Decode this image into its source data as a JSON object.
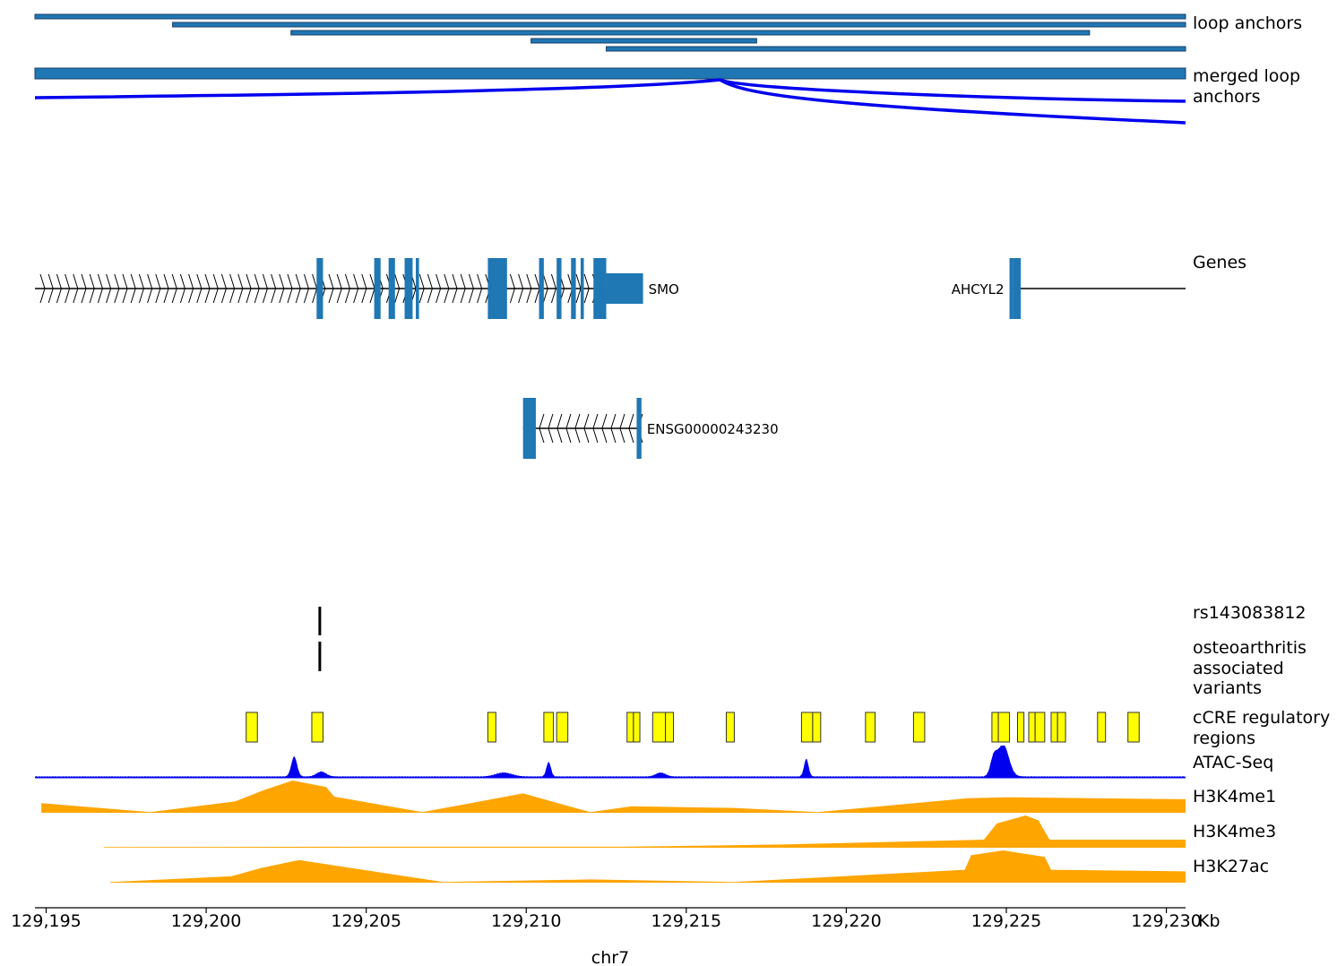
{
  "chromosome": "chr7",
  "axis": {
    "unit": "Kb",
    "range_kb": [
      129194.65,
      129230.6
    ],
    "tick_values_kb": [
      129195,
      129200,
      129205,
      129210,
      129215,
      129220,
      129225,
      129230
    ],
    "tick_labels": [
      "129,195",
      "129,200",
      "129,205",
      "129,210",
      "129,215",
      "129,220",
      "129,225",
      "129,230"
    ]
  },
  "tracks": {
    "loop_anchors": {
      "label_lines": [
        "loop anchors"
      ],
      "color": "#1f77b4",
      "intervals_kb": [
        [
          129194.65,
          129230.6
        ],
        [
          129198.95,
          129230.6
        ],
        [
          129202.65,
          129227.6
        ],
        [
          129210.15,
          129217.2
        ],
        [
          129212.5,
          129230.6
        ]
      ]
    },
    "merged_loop_anchors": {
      "label_lines": [
        "merged loop",
        "anchors"
      ],
      "color": "#1f77b4",
      "intervals_kb": [
        [
          129194.65,
          129230.6
        ]
      ]
    },
    "loops": {
      "color": "#0000ee",
      "arcs_kb": [
        [
          129194.65,
          129216.05,
          129230.6
        ],
        [
          129216.05,
          129230.6
        ]
      ]
    },
    "genes": {
      "label_lines": [
        "Genes"
      ],
      "color": "#1f77b4",
      "items": [
        {
          "name": "SMO",
          "strand": "+",
          "span_kb": [
            129194.65,
            129213.5
          ],
          "exons_kb": [
            [
              129203.45,
              129203.65
            ],
            [
              129205.25,
              129205.45
            ],
            [
              129205.7,
              129205.9
            ],
            [
              129206.2,
              129206.45
            ],
            [
              129206.55,
              129206.65
            ],
            [
              129208.8,
              129209.4
            ],
            [
              129210.4,
              129210.55
            ],
            [
              129210.95,
              129211.1
            ],
            [
              129211.4,
              129211.55
            ],
            [
              129211.7,
              129211.8
            ],
            [
              129212.1,
              129212.5
            ]
          ],
          "utr_kb": [
            [
              129212.5,
              129213.65
            ]
          ],
          "label_side": "right"
        },
        {
          "name": "AHCYL2",
          "strand": "+",
          "span_kb": [
            129225.1,
            129230.6
          ],
          "exons_kb": [
            [
              129225.1,
              129225.2
            ],
            [
              129225.2,
              129225.45
            ]
          ],
          "utr_kb": [],
          "label_side": "left"
        },
        {
          "name": "ENSG00000243230",
          "strand": "-",
          "span_kb": [
            129209.9,
            129213.6
          ],
          "exons_kb": [
            [
              129209.9,
              129210.3
            ],
            [
              129213.45,
              129213.6
            ]
          ],
          "utr_kb": [],
          "label_side": "right"
        }
      ]
    },
    "snp": {
      "label_lines": [
        "rs143083812"
      ],
      "positions_kb": [
        129203.55
      ]
    },
    "oa_variants": {
      "label_lines": [
        "osteoarthritis",
        "associated",
        "variants"
      ],
      "positions_kb": [
        129203.55
      ]
    },
    "ccre": {
      "label_lines": [
        "cCRE regulatory",
        "regions"
      ],
      "color": "#ffff00",
      "intervals_kb": [
        [
          129201.25,
          129201.6
        ],
        [
          129203.3,
          129203.65
        ],
        [
          129208.8,
          129209.05
        ],
        [
          129210.55,
          129210.85
        ],
        [
          129210.95,
          129211.3
        ],
        [
          129213.15,
          129213.35
        ],
        [
          129213.35,
          129213.55
        ],
        [
          129213.95,
          129214.35
        ],
        [
          129214.35,
          129214.6
        ],
        [
          129216.25,
          129216.5
        ],
        [
          129218.6,
          129218.95
        ],
        [
          129218.95,
          129219.2
        ],
        [
          129220.6,
          129220.9
        ],
        [
          129222.1,
          129222.45
        ],
        [
          129224.55,
          129224.75
        ],
        [
          129224.75,
          129225.1
        ],
        [
          129225.35,
          129225.55
        ],
        [
          129225.7,
          129225.9
        ],
        [
          129225.9,
          129226.2
        ],
        [
          129226.4,
          129226.6
        ],
        [
          129226.6,
          129226.85
        ],
        [
          129227.85,
          129228.1
        ],
        [
          129228.8,
          129229.15
        ]
      ]
    },
    "atac": {
      "label_lines": [
        "ATAC-Seq"
      ],
      "color": "#0000ee",
      "baseline": 0.05,
      "peaks": [
        {
          "center_kb": 129202.75,
          "height": 0.62,
          "width_kb": 0.18
        },
        {
          "center_kb": 129210.7,
          "height": 0.45,
          "width_kb": 0.14
        },
        {
          "center_kb": 129218.75,
          "height": 0.55,
          "width_kb": 0.14
        },
        {
          "center_kb": 129224.9,
          "height": 1.0,
          "width_kb": 0.35
        },
        {
          "center_kb": 129224.6,
          "height": 0.5,
          "width_kb": 0.2
        },
        {
          "center_kb": 129214.2,
          "height": 0.12,
          "width_kb": 0.3
        },
        {
          "center_kb": 129209.3,
          "height": 0.12,
          "width_kb": 0.5
        },
        {
          "center_kb": 129203.6,
          "height": 0.15,
          "width_kb": 0.3
        }
      ]
    },
    "h3k4me1": {
      "label_lines": [
        "H3K4me1"
      ],
      "color": "#ffa500",
      "points_kb": [
        [
          129194.85,
          0.3
        ],
        [
          129198.25,
          0.02
        ],
        [
          129200.9,
          0.35
        ],
        [
          129201.8,
          0.7
        ],
        [
          129202.7,
          1.0
        ],
        [
          129203.75,
          0.8
        ],
        [
          129204.0,
          0.5
        ],
        [
          129206.75,
          0.02
        ],
        [
          129209.9,
          0.6
        ],
        [
          129212.0,
          0.02
        ],
        [
          129213.3,
          0.2
        ],
        [
          129216.5,
          0.15
        ],
        [
          129219.1,
          0.02
        ],
        [
          129223.8,
          0.45
        ],
        [
          129225.0,
          0.48
        ],
        [
          129230.6,
          0.42
        ]
      ]
    },
    "h3k4me3": {
      "label_lines": [
        "H3K4me3"
      ],
      "color": "#ffa500",
      "points_kb": [
        [
          129196.8,
          0.02
        ],
        [
          129205.0,
          0.03
        ],
        [
          129213.0,
          0.03
        ],
        [
          129218.0,
          0.1
        ],
        [
          129224.3,
          0.25
        ],
        [
          129224.7,
          0.75
        ],
        [
          129225.6,
          1.0
        ],
        [
          129226.0,
          0.85
        ],
        [
          129226.35,
          0.25
        ],
        [
          129230.6,
          0.25
        ]
      ]
    },
    "h3k27ac": {
      "label_lines": [
        "H3K27ac"
      ],
      "color": "#ffa500",
      "points_kb": [
        [
          129197.0,
          0.02
        ],
        [
          129200.8,
          0.2
        ],
        [
          129201.7,
          0.45
        ],
        [
          129202.9,
          0.7
        ],
        [
          129207.4,
          0.02
        ],
        [
          129212.0,
          0.1
        ],
        [
          129216.5,
          0.02
        ],
        [
          129223.7,
          0.4
        ],
        [
          129223.9,
          0.85
        ],
        [
          129224.9,
          1.0
        ],
        [
          129226.2,
          0.8
        ],
        [
          129226.4,
          0.4
        ],
        [
          129230.6,
          0.35
        ]
      ]
    }
  }
}
